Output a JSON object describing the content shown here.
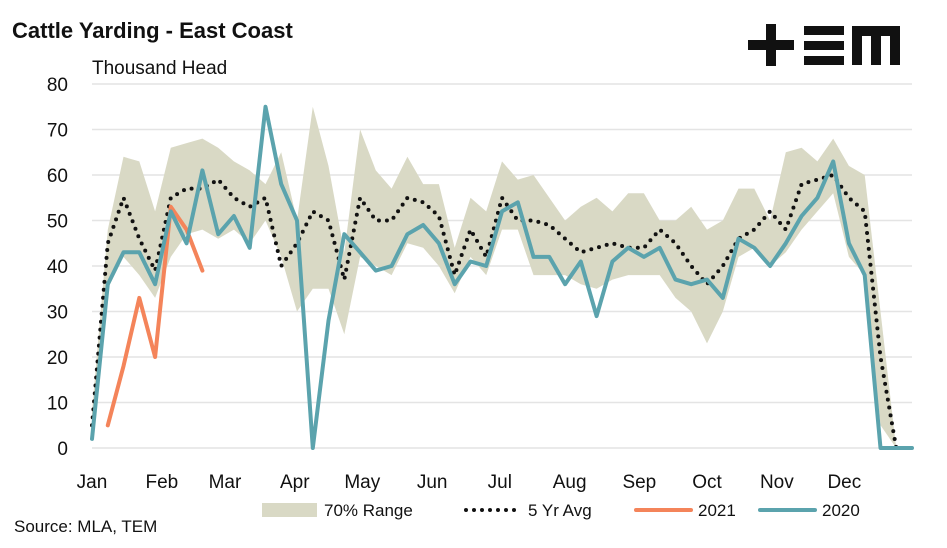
{
  "chart_data": {
    "type": "line",
    "title": "Cattle Yarding - East Coast",
    "subtitle": "Thousand Head",
    "source": "Source: MLA, TEM",
    "x": [
      0,
      1,
      2,
      3,
      4,
      5,
      6,
      7,
      8,
      9,
      10,
      11,
      12,
      13,
      14,
      15,
      16,
      17,
      18,
      19,
      20,
      21,
      22,
      23,
      24,
      25,
      26,
      27,
      28,
      29,
      30,
      31,
      32,
      33,
      34,
      35,
      36,
      37,
      38,
      39,
      40,
      41,
      42,
      43,
      44,
      45,
      46,
      47,
      48,
      49,
      50,
      51,
      52
    ],
    "xlim": [
      0,
      52
    ],
    "xticks": [
      {
        "value": 0,
        "label": "Jan"
      },
      {
        "value": 4.43,
        "label": "Feb"
      },
      {
        "value": 8.43,
        "label": "Mar"
      },
      {
        "value": 12.86,
        "label": "Apr"
      },
      {
        "value": 17.14,
        "label": "May"
      },
      {
        "value": 21.57,
        "label": "Jun"
      },
      {
        "value": 25.86,
        "label": "Jul"
      },
      {
        "value": 30.29,
        "label": "Aug"
      },
      {
        "value": 34.71,
        "label": "Sep"
      },
      {
        "value": 39,
        "label": "Oct"
      },
      {
        "value": 43.43,
        "label": "Nov"
      },
      {
        "value": 47.71,
        "label": "Dec"
      }
    ],
    "ylim": [
      0,
      80
    ],
    "yticks": [
      0,
      10,
      20,
      30,
      40,
      50,
      60,
      70,
      80
    ],
    "grid": true,
    "series": [
      {
        "name": "70% Range",
        "kind": "band",
        "color": "#d9d9c5",
        "low": [
          2,
          35,
          42,
          38,
          33,
          42,
          47,
          48,
          46,
          48,
          45,
          50,
          42,
          30,
          35,
          35,
          25,
          42,
          40,
          38,
          45,
          44,
          40,
          34,
          42,
          38,
          48,
          48,
          38,
          38,
          38,
          36,
          35,
          37,
          38,
          38,
          38,
          33,
          30,
          23,
          30,
          42,
          44,
          40,
          43,
          48,
          52,
          56,
          42,
          38,
          5,
          0,
          0
        ],
        "high": [
          8,
          48,
          64,
          63,
          52,
          66,
          67,
          68,
          66,
          63,
          61,
          58,
          65,
          50,
          75,
          62,
          43,
          70,
          61,
          57,
          64,
          58,
          58,
          44,
          55,
          52,
          63,
          59,
          60,
          55,
          50,
          53,
          55,
          52,
          56,
          56,
          50,
          50,
          53,
          48,
          50,
          57,
          57,
          50,
          65,
          66,
          63,
          68,
          62,
          60,
          30,
          0,
          0
        ]
      },
      {
        "name": "5 Yr Avg",
        "kind": "dotted",
        "color": "#111111",
        "values": [
          5,
          45,
          55,
          46,
          39,
          55,
          57,
          57,
          59,
          55,
          53,
          55,
          40,
          45,
          52,
          50,
          37,
          55,
          50,
          50,
          55,
          54,
          51,
          38,
          48,
          42,
          55,
          50,
          50,
          49,
          46,
          43,
          44,
          45,
          44,
          44,
          48,
          45,
          40,
          36,
          40,
          46,
          48,
          52,
          48,
          58,
          59,
          60,
          55,
          52,
          20,
          0,
          0
        ]
      },
      {
        "name": "2021",
        "kind": "solid",
        "color": "#f4845a",
        "values": [
          null,
          5,
          18,
          33,
          20,
          53,
          48,
          39,
          null,
          null,
          null,
          null,
          null,
          null,
          null,
          null,
          null,
          null,
          null,
          null,
          null,
          null,
          null,
          null,
          null,
          null,
          null,
          null,
          null,
          null,
          null,
          null,
          null,
          null,
          null,
          null,
          null,
          null,
          null,
          null,
          null,
          null,
          null,
          null,
          null,
          null,
          null,
          null,
          null,
          null,
          null,
          null,
          null
        ]
      },
      {
        "name": "2020",
        "kind": "solid",
        "color": "#5ba3ad",
        "values": [
          2,
          36,
          43,
          43,
          36,
          52,
          45,
          61,
          47,
          51,
          44,
          75,
          58,
          50,
          0,
          28,
          47,
          43,
          39,
          40,
          47,
          49,
          45,
          36,
          41,
          40,
          52,
          54,
          42,
          42,
          36,
          41,
          29,
          41,
          44,
          42,
          44,
          37,
          36,
          37,
          33,
          46,
          44,
          40,
          45,
          51,
          55,
          63,
          45,
          38,
          0,
          0,
          0
        ]
      }
    ]
  }
}
